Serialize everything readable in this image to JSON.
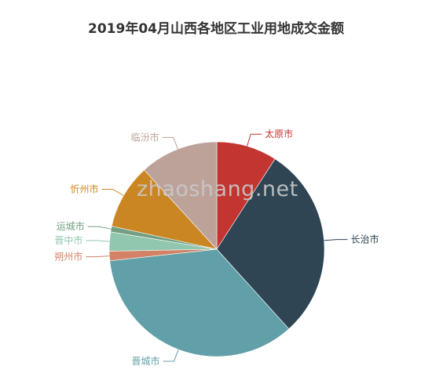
{
  "chart_data": {
    "type": "pie",
    "title": "2019年04月山西各地区工业用地成交金额",
    "start_angle_deg": 0,
    "direction": "clockwise",
    "slices": [
      {
        "name": "太原市",
        "value": 9.5,
        "color": "#c23531"
      },
      {
        "name": "长治市",
        "value": 30.5,
        "color": "#2f4554"
      },
      {
        "name": "晋城市",
        "value": 36.5,
        "color": "#61a0a8"
      },
      {
        "name": "朔州市",
        "value": 1.5,
        "color": "#d48265"
      },
      {
        "name": "晋中市",
        "value": 3.0,
        "color": "#91c7ae"
      },
      {
        "name": "运城市",
        "value": 0.9,
        "color": "#749f83"
      },
      {
        "name": "忻州市",
        "value": 10.2,
        "color": "#ca8622"
      },
      {
        "name": "临汾市",
        "value": 12.3,
        "color": "#bda29a"
      }
    ]
  },
  "watermark": "zhaoshang.net"
}
